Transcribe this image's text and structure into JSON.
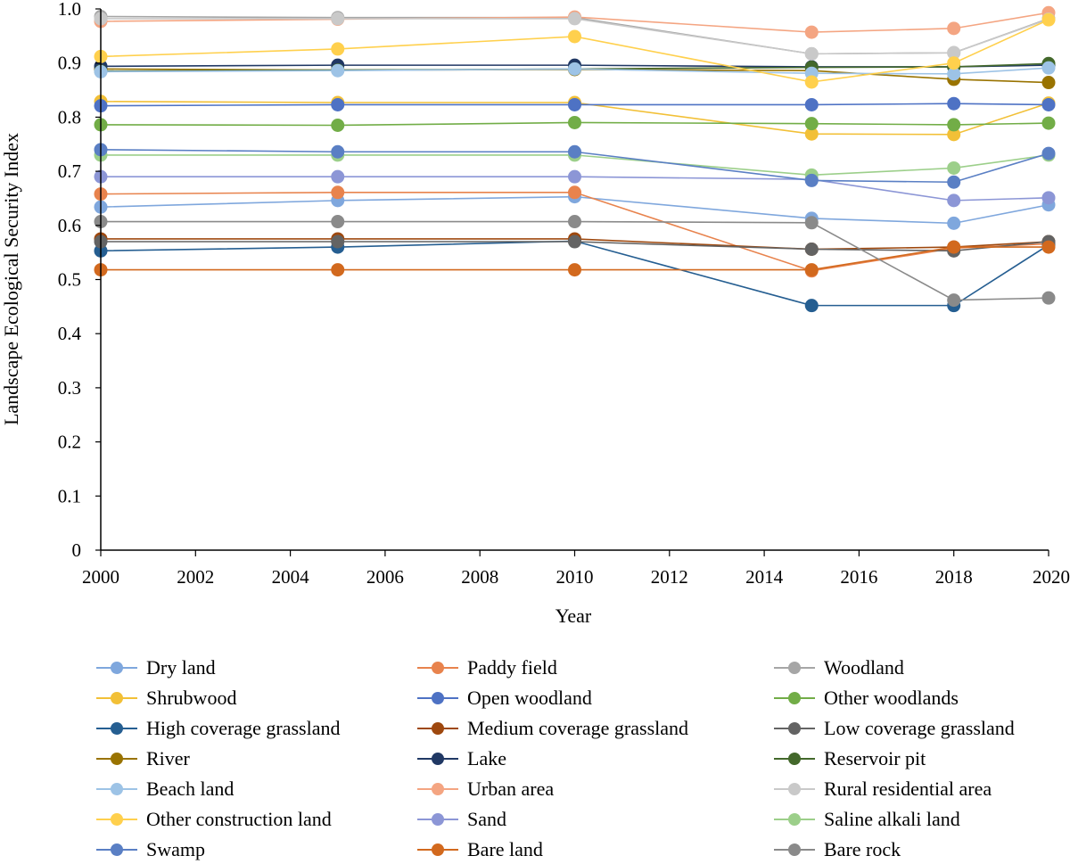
{
  "chart_data": {
    "type": "line",
    "xlabel": "Year",
    "ylabel": "Landscape Ecological Security Index",
    "xlim": [
      2000,
      2020
    ],
    "ylim": [
      0,
      1.0
    ],
    "x_ticks": [
      "2000",
      "2002",
      "2004",
      "2006",
      "2008",
      "2010",
      "2012",
      "2014",
      "2016",
      "2018",
      "2020"
    ],
    "y_ticks": [
      "0",
      "0.1",
      "0.2",
      "0.3",
      "0.4",
      "0.5",
      "0.6",
      "0.7",
      "0.8",
      "0.9",
      "1.0"
    ],
    "grid": false,
    "legend_position": "bottom",
    "x": [
      2000,
      2005,
      2010,
      2015,
      2018,
      2020
    ],
    "series": [
      {
        "name": "Dry land",
        "color": "#7fa7dd",
        "values": [
          0.634,
          0.646,
          0.653,
          0.613,
          0.604,
          0.638
        ]
      },
      {
        "name": "Paddy field",
        "color": "#e8834d",
        "values": [
          0.658,
          0.661,
          0.661,
          0.516,
          0.558,
          0.566
        ]
      },
      {
        "name": "Woodland",
        "color": "#a6a6a6",
        "values": [
          0.986,
          0.984,
          0.984,
          0.917,
          0.919,
          0.982
        ]
      },
      {
        "name": "Shrubwood",
        "color": "#f2c037",
        "values": [
          0.829,
          0.827,
          0.827,
          0.769,
          0.768,
          0.826
        ]
      },
      {
        "name": "Open woodland",
        "color": "#4e72c4",
        "values": [
          0.821,
          0.823,
          0.823,
          0.823,
          0.825,
          0.823
        ]
      },
      {
        "name": "Other woodlands",
        "color": "#72ad47",
        "values": [
          0.786,
          0.785,
          0.79,
          0.788,
          0.786,
          0.789
        ]
      },
      {
        "name": "High coverage grassland",
        "color": "#255e91",
        "values": [
          0.553,
          0.56,
          0.571,
          0.452,
          0.452,
          0.564
        ]
      },
      {
        "name": "Medium coverage grassland",
        "color": "#9e480e",
        "values": [
          0.575,
          0.575,
          0.575,
          0.556,
          0.56,
          0.57
        ]
      },
      {
        "name": "Low coverage grassland",
        "color": "#636363",
        "values": [
          0.57,
          0.57,
          0.57,
          0.556,
          0.553,
          0.57
        ]
      },
      {
        "name": "River",
        "color": "#997300",
        "values": [
          0.889,
          0.887,
          0.888,
          0.886,
          0.87,
          0.864
        ]
      },
      {
        "name": "Lake",
        "color": "#203864",
        "values": [
          0.894,
          0.896,
          0.896,
          0.893,
          0.893,
          0.896
        ]
      },
      {
        "name": "Reservoir pit",
        "color": "#43682b",
        "values": [
          0.885,
          0.887,
          0.889,
          0.892,
          0.893,
          0.899
        ]
      },
      {
        "name": "Beach land",
        "color": "#9dc3e6",
        "values": [
          0.884,
          0.886,
          0.889,
          0.881,
          0.88,
          0.891
        ]
      },
      {
        "name": "Urban area",
        "color": "#f4a582",
        "values": [
          0.977,
          0.981,
          0.985,
          0.957,
          0.964,
          0.993
        ]
      },
      {
        "name": "Rural residential area",
        "color": "#c9c9c9",
        "values": [
          0.982,
          0.982,
          0.982,
          0.917,
          0.919,
          0.981
        ]
      },
      {
        "name": "Other construction land",
        "color": "#ffd04d",
        "values": [
          0.912,
          0.926,
          0.949,
          0.865,
          0.9,
          0.98
        ]
      },
      {
        "name": "Sand",
        "color": "#8c96d6",
        "values": [
          0.69,
          0.69,
          0.69,
          0.685,
          0.646,
          0.651
        ]
      },
      {
        "name": "Saline alkali land",
        "color": "#9ccf8a",
        "values": [
          0.73,
          0.73,
          0.73,
          0.693,
          0.706,
          0.73
        ]
      },
      {
        "name": "Swamp",
        "color": "#5a7fc4",
        "values": [
          0.74,
          0.736,
          0.736,
          0.683,
          0.68,
          0.733
        ]
      },
      {
        "name": "Bare land",
        "color": "#d2691e",
        "values": [
          0.518,
          0.518,
          0.518,
          0.518,
          0.56,
          0.56
        ]
      },
      {
        "name": "Bare rock",
        "color": "#8a8a8a",
        "values": [
          0.607,
          0.607,
          0.607,
          0.605,
          0.462,
          0.466
        ]
      }
    ]
  }
}
